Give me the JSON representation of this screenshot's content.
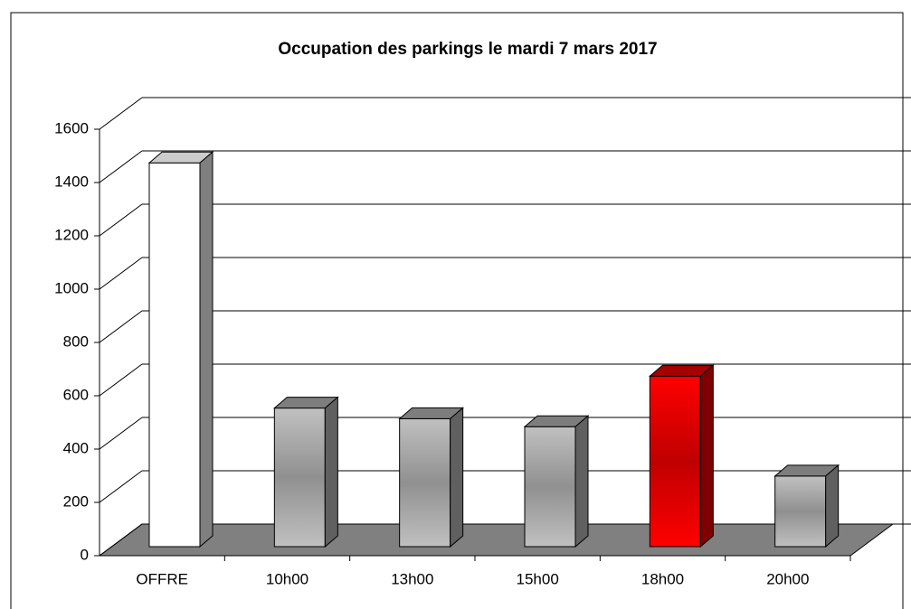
{
  "chart_data": {
    "type": "bar3d",
    "title": "Occupation des parkings le mardi 7 mars 2017",
    "categories": [
      "OFFRE",
      "10h00",
      "13h00",
      "15h00",
      "18h00",
      "20h00"
    ],
    "values": [
      1440,
      520,
      480,
      450,
      640,
      265
    ],
    "colors": [
      "#ffffff",
      "#c0c0c0",
      "#c0c0c0",
      "#c0c0c0",
      "#ff0000",
      "#c0c0c0"
    ],
    "ylim": [
      0,
      1600
    ],
    "yticks": [
      0,
      200,
      400,
      600,
      800,
      1000,
      1200,
      1400,
      1600
    ],
    "grid": true
  }
}
